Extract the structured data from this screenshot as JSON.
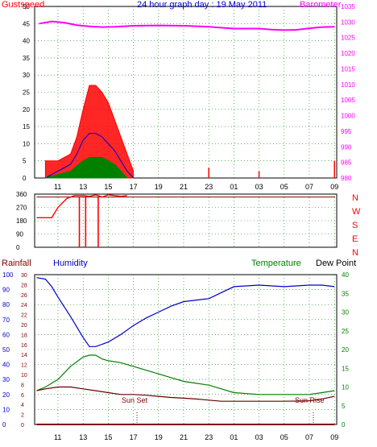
{
  "header": {
    "left_label": "Gustspeed",
    "title": "24 hour graph day : 19 May 2011",
    "right_label": "Barometer"
  },
  "colors": {
    "red": "#ff0000",
    "blue": "#0000cc",
    "green": "#008000",
    "magenta": "#ff00ff",
    "darkred": "#800000",
    "maroon": "#660000",
    "grid": "#008000"
  },
  "chart_data": [
    {
      "type": "line",
      "title": "24 hour graph day : 19 May 2011",
      "x_ticks": [
        "11",
        "13",
        "15",
        "17",
        "19",
        "21",
        "23",
        "01",
        "03",
        "05",
        "07",
        "09"
      ],
      "left_axis": {
        "label": "Gustspeed",
        "range": [
          0,
          50
        ],
        "ticks": [
          0,
          5,
          10,
          15,
          20,
          25,
          30,
          35,
          40,
          45,
          50
        ]
      },
      "right_axis": {
        "label": "Barometer",
        "range": [
          980,
          1035
        ],
        "ticks": [
          980,
          985,
          990,
          995,
          1000,
          1005,
          1010,
          1015,
          1020,
          1025,
          1030,
          1035
        ]
      },
      "barometer": {
        "x": [
          9.5,
          10.5,
          11.5,
          12.5,
          13.5,
          14.5,
          15.5,
          17,
          19,
          21,
          23,
          25,
          27,
          28,
          29,
          30,
          31,
          32,
          33
        ],
        "y": [
          1029.5,
          1030.2,
          1029.8,
          1029.0,
          1028.6,
          1028.4,
          1028.5,
          1028.8,
          1028.9,
          1028.8,
          1028.5,
          1027.9,
          1027.9,
          1027.6,
          1027.4,
          1027.5,
          1028.0,
          1028.4,
          1028.5
        ]
      },
      "gust_peaks": {
        "x": [
          10,
          11,
          12,
          12.5,
          13,
          13.5,
          14,
          14.5,
          15,
          15.5,
          16,
          16.5,
          17,
          23,
          27,
          33
        ],
        "y": [
          5,
          5,
          7,
          12,
          20,
          27,
          27,
          25,
          22,
          17,
          12,
          7,
          2,
          3,
          2,
          5
        ]
      },
      "gust_mean": {
        "x": [
          10,
          11,
          12,
          12.5,
          13,
          13.5,
          14,
          14.5,
          15,
          15.5,
          16,
          16.5,
          17
        ],
        "y": [
          0,
          2,
          4,
          7,
          11,
          13,
          13,
          12,
          10,
          8,
          5,
          2,
          0
        ]
      },
      "wind_avg": {
        "x": [
          10,
          11,
          12,
          13,
          13.5,
          14,
          14.5,
          15,
          15.5,
          16,
          16.5
        ],
        "y": [
          0,
          1,
          2,
          5,
          6,
          6,
          6,
          5,
          4,
          2,
          0
        ]
      }
    },
    {
      "type": "line",
      "axis_ticks": [
        0,
        90,
        180,
        270,
        360
      ],
      "compass": [
        "N",
        "W",
        "S",
        "E",
        "N"
      ],
      "direction": {
        "x": [
          9.3,
          10.5,
          11,
          11.7,
          12.3,
          13,
          13.5,
          14,
          14.5,
          15,
          15.5,
          16,
          16.5
        ],
        "y": [
          200,
          200,
          270,
          330,
          350,
          350,
          345,
          355,
          340,
          355,
          350,
          345,
          350
        ]
      },
      "direction_dips": [
        12.7,
        13.2,
        14.2
      ],
      "direction_reference": 340
    },
    {
      "type": "line",
      "left_labels": {
        "rainfall": "Rainfall",
        "humidity": "Humidity"
      },
      "right_labels": {
        "temperature": "Temperature",
        "dew_point": "Dew Point"
      },
      "humidity_axis": {
        "range": [
          0,
          100
        ],
        "ticks": [
          0,
          10,
          20,
          30,
          40,
          50,
          60,
          70,
          80,
          90,
          100
        ]
      },
      "rain_axis": {
        "range": [
          0,
          30
        ],
        "ticks": [
          0,
          2,
          4,
          6,
          8,
          10,
          12,
          14,
          16,
          18,
          20,
          22,
          24,
          26,
          28,
          30
        ]
      },
      "temp_axis": {
        "range": [
          0,
          40
        ],
        "ticks": [
          0,
          5,
          10,
          15,
          20,
          25,
          30,
          35,
          40
        ]
      },
      "annotations": {
        "sunset": "Sun Set",
        "sunrise": "Sun Rise"
      },
      "x_ticks": [
        "11",
        "13",
        "15",
        "17",
        "19",
        "21",
        "23",
        "01",
        "03",
        "05",
        "07",
        "09"
      ],
      "humidity": {
        "x": [
          9.3,
          10,
          10.5,
          11,
          12,
          13,
          13.5,
          14,
          15,
          16,
          17,
          18,
          19,
          20,
          21,
          22,
          23,
          24,
          25,
          27,
          29,
          31,
          32,
          33
        ],
        "y": [
          98,
          97,
          92,
          85,
          72,
          58,
          52,
          52,
          55,
          60,
          66,
          71,
          75,
          79,
          82,
          83,
          84,
          88,
          92,
          93,
          92,
          93,
          93,
          92
        ]
      },
      "temperature": {
        "x": [
          9.3,
          10,
          11,
          12,
          13,
          13.5,
          14,
          14.5,
          15,
          16,
          17,
          18,
          19,
          20,
          21,
          22,
          23,
          24,
          25,
          27,
          29,
          31,
          32,
          33
        ],
        "y": [
          9,
          10,
          12,
          15.5,
          18,
          18.5,
          18.5,
          17.5,
          17,
          16.5,
          15.5,
          14.5,
          13.5,
          12.5,
          11.5,
          11,
          10.5,
          9.5,
          8.5,
          8,
          8,
          8,
          8.5,
          9
        ]
      },
      "dew_point": {
        "x": [
          9.3,
          10,
          11,
          12,
          13,
          14,
          15,
          16,
          17,
          18,
          19,
          20,
          21,
          22,
          23,
          24,
          25,
          27,
          29,
          31,
          32,
          33
        ],
        "y": [
          9,
          9.5,
          10,
          10,
          9.5,
          9,
          8.5,
          8,
          8,
          7.8,
          7.5,
          7.2,
          7,
          6.8,
          6.5,
          6.2,
          6.2,
          6.2,
          6.2,
          6.3,
          6.8,
          7.5
        ]
      },
      "rainfall": {
        "x": [
          9.3,
          33
        ],
        "y": [
          0,
          0
        ]
      }
    }
  ]
}
